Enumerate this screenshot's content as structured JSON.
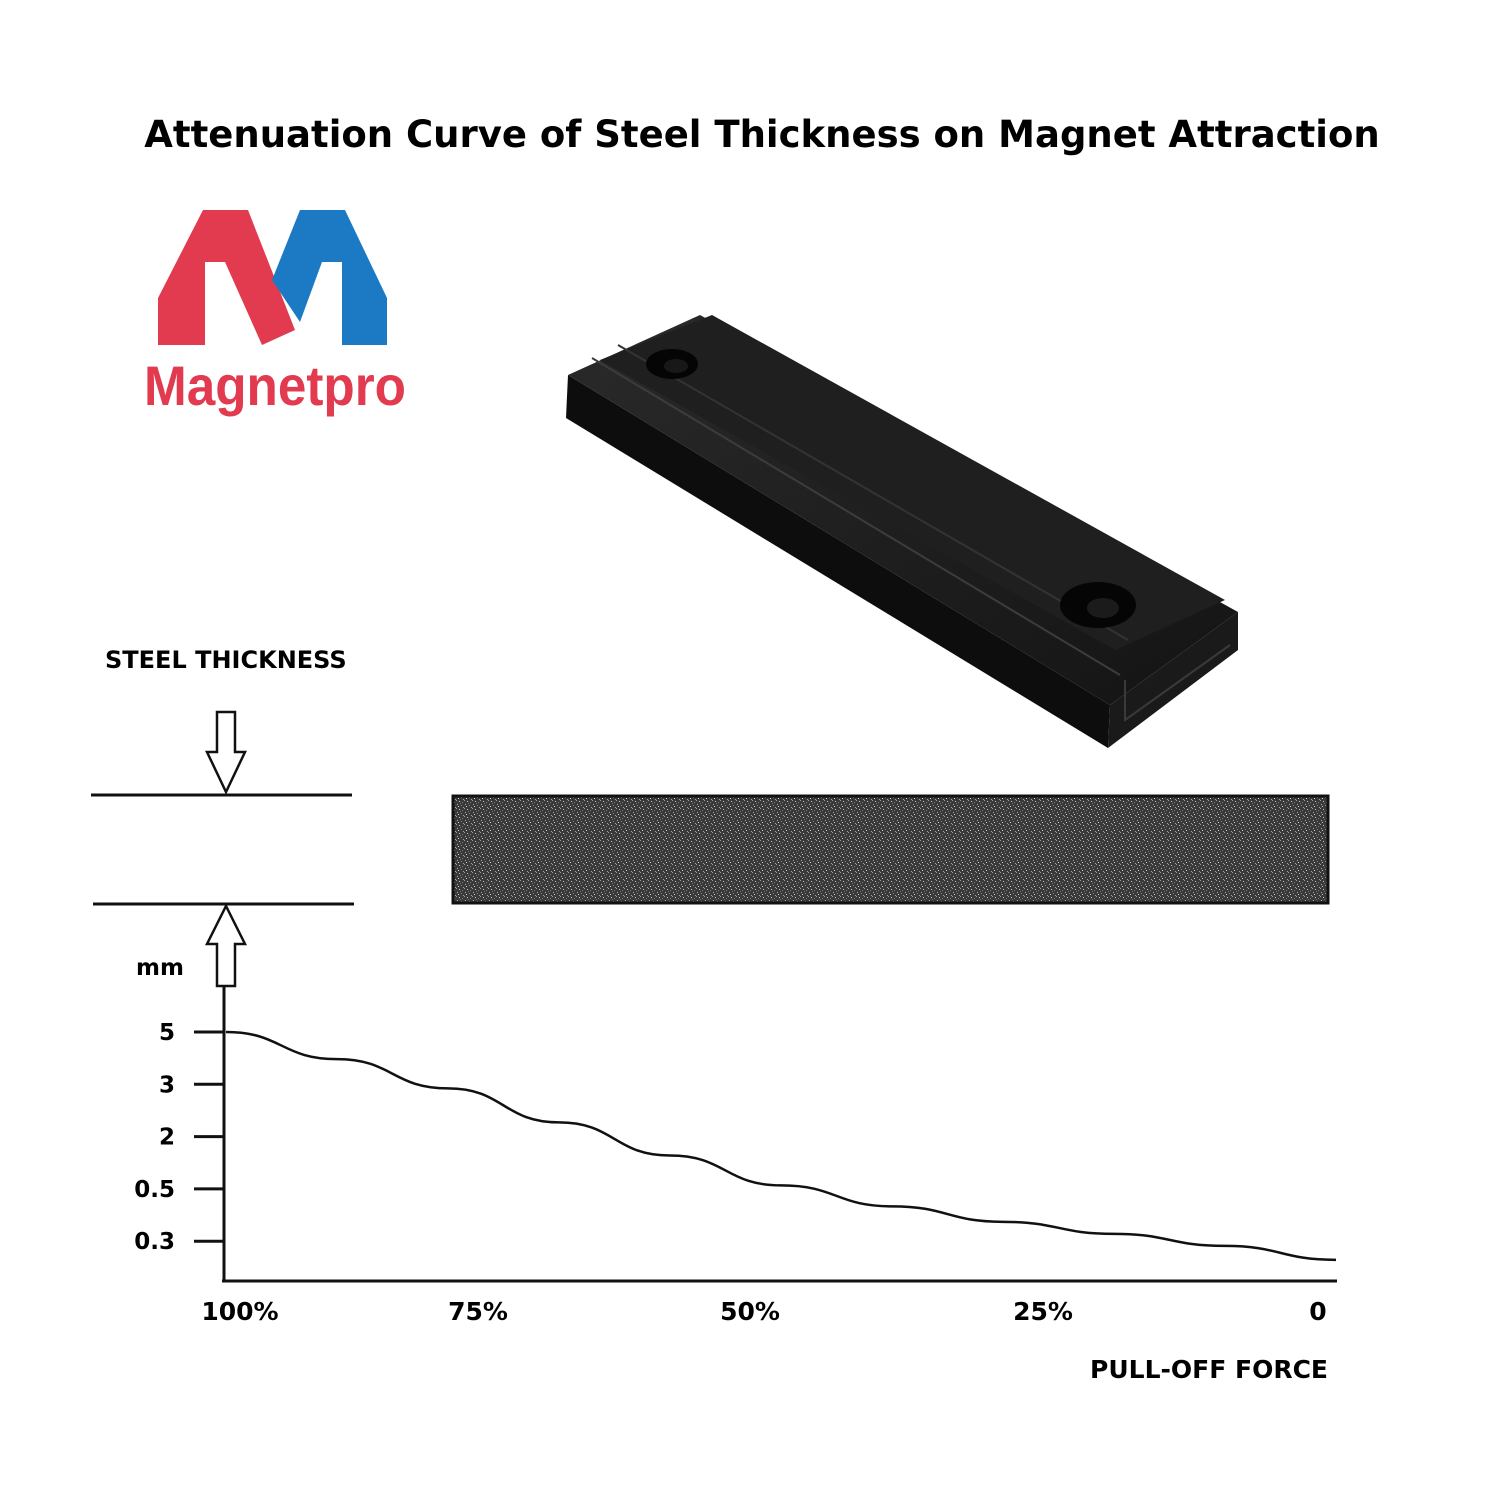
{
  "title": "Attenuation Curve of Steel Thickness on Magnet Attraction",
  "logo": {
    "wordmark": "Magnetpro",
    "color_red": "#e23a4f",
    "color_blue": "#1c7ac4"
  },
  "product": {
    "icon": "black-channel-magnet-bar-with-two-countersunk-holes"
  },
  "steel_diagram": {
    "label": "STEEL THICKNESS"
  },
  "chart_data": {
    "type": "line",
    "xlabel": "PULL-OFF FORCE",
    "ylabel": "mm",
    "x_ticks": [
      "100%",
      "75%",
      "50%",
      "25%",
      "0"
    ],
    "y_ticks": [
      "5",
      "3",
      "2",
      "0.5",
      "0.3"
    ],
    "x_direction": "descending",
    "series": [
      {
        "x": [
          100,
          90,
          80,
          70,
          60,
          50,
          40,
          30,
          20,
          10,
          0
        ],
        "y": [
          5,
          3.6,
          2.5,
          1.6,
          1.0,
          0.62,
          0.42,
          0.3,
          0.22,
          0.15,
          0.08
        ]
      }
    ],
    "grid": false,
    "legend": "none"
  }
}
